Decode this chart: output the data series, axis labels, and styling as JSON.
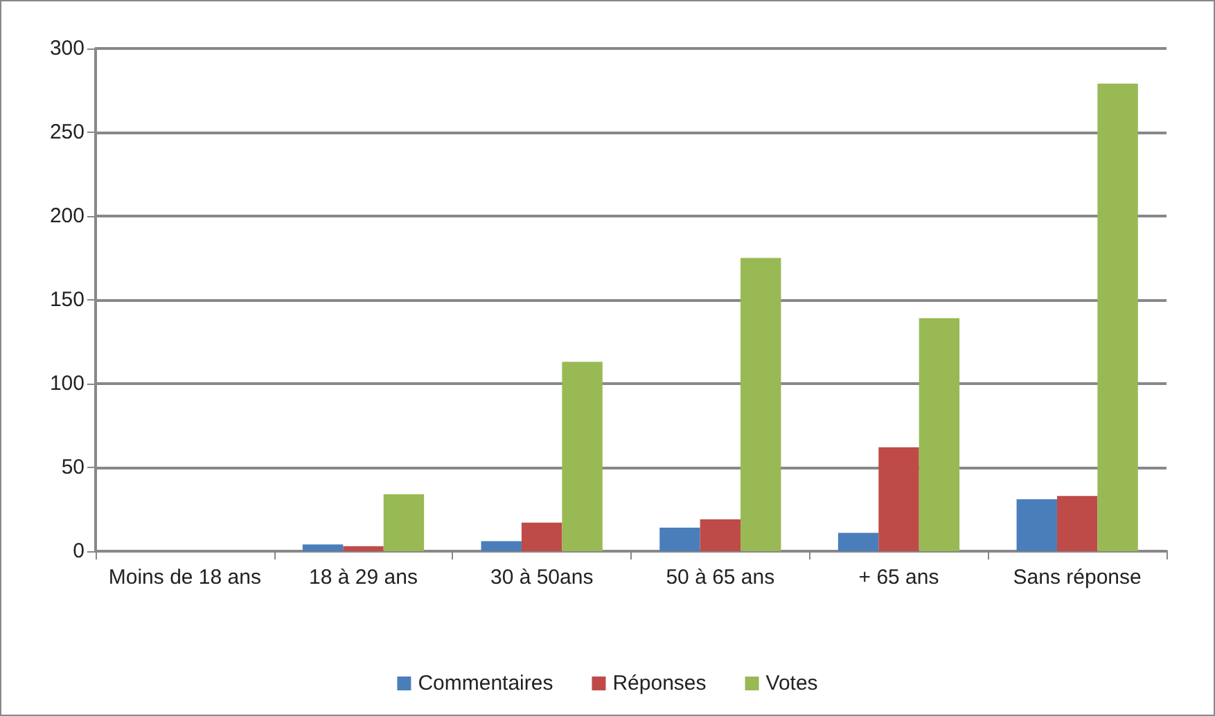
{
  "chart_data": {
    "type": "bar",
    "categories": [
      "Moins de 18 ans",
      "18 à 29 ans",
      "30 à 50ans",
      "50 à 65 ans",
      "+ 65 ans",
      "Sans réponse"
    ],
    "series": [
      {
        "name": "Commentaires",
        "color": "#4a7ebb",
        "values": [
          0,
          4,
          6,
          14,
          11,
          31
        ]
      },
      {
        "name": "Réponses",
        "color": "#be4b48",
        "values": [
          0,
          3,
          17,
          19,
          62,
          33
        ]
      },
      {
        "name": "Votes",
        "color": "#98b954",
        "values": [
          0,
          34,
          113,
          175,
          139,
          279
        ]
      }
    ],
    "ylim": [
      0,
      300
    ],
    "yticks": [
      0,
      50,
      100,
      150,
      200,
      250,
      300
    ],
    "grid": "y",
    "legend": "bottom"
  }
}
